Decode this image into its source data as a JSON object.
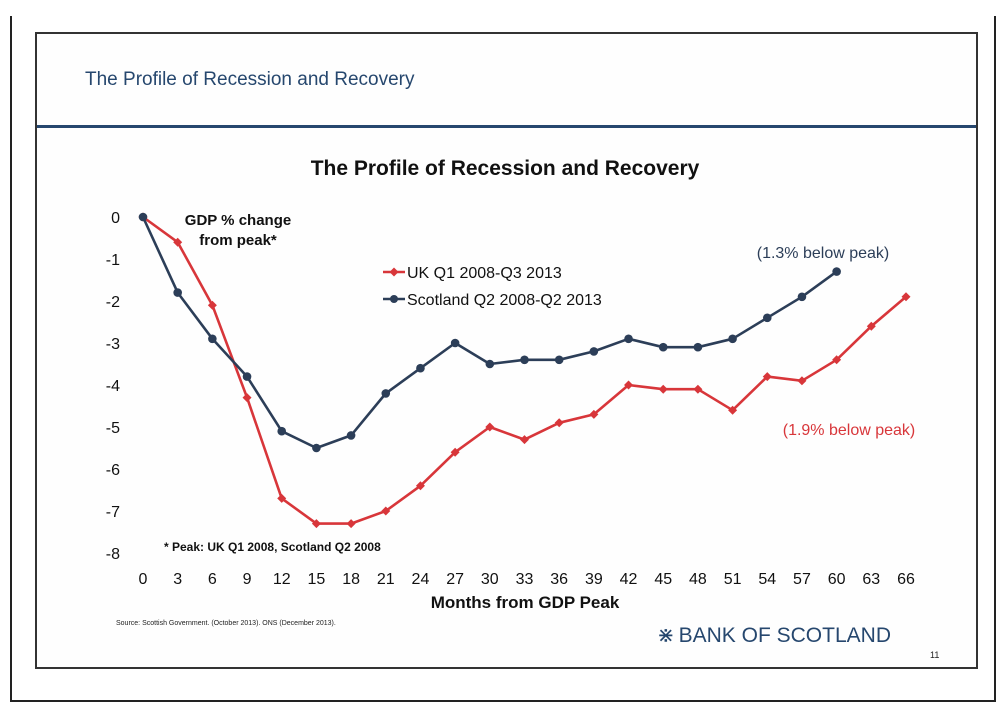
{
  "slide": {
    "header": "The Profile of Recession and Recovery",
    "source": "Source: Scottish Government. (October 2013). ONS (December 2013).",
    "brand": "BANK OF SCOTLAND",
    "brand_icon": "saltire-icon",
    "page_number": "11",
    "colors": {
      "header": "#26476e",
      "uk": "#d8363a",
      "scotland": "#2c3e58"
    }
  },
  "chart_data": {
    "type": "line",
    "title": "The Profile of Recession and Recovery",
    "ylabel": "GDP % change from peak*",
    "ylabel_lines": [
      "GDP % change",
      "from peak*"
    ],
    "xlabel": "Months from GDP Peak",
    "xlim": [
      0,
      66
    ],
    "ylim": [
      -8,
      0
    ],
    "x_ticks": [
      0,
      3,
      6,
      9,
      12,
      15,
      18,
      21,
      24,
      27,
      30,
      33,
      36,
      39,
      42,
      45,
      48,
      51,
      54,
      57,
      60,
      63,
      66
    ],
    "y_ticks": [
      0,
      -1,
      -2,
      -3,
      -4,
      -5,
      -6,
      -7,
      -8
    ],
    "grid": false,
    "legend_position": "upper-center",
    "series": [
      {
        "name": "UK Q1 2008-Q3 2013",
        "color": "#d8363a",
        "marker": "diamond",
        "x": [
          0,
          3,
          6,
          9,
          12,
          15,
          18,
          21,
          24,
          27,
          30,
          33,
          36,
          39,
          42,
          45,
          48,
          51,
          54,
          57,
          60,
          63,
          66
        ],
        "values": [
          0,
          -0.6,
          -2.1,
          -4.3,
          -6.7,
          -7.3,
          -7.3,
          -7.0,
          -6.4,
          -5.6,
          -5.0,
          -5.3,
          -4.9,
          -4.7,
          -4.0,
          -4.1,
          -4.1,
          -4.6,
          -3.8,
          -3.9,
          -3.4,
          -2.6,
          -1.9
        ]
      },
      {
        "name": "Scotland Q2 2008-Q2 2013",
        "color": "#2c3e58",
        "marker": "circle",
        "x": [
          0,
          3,
          6,
          9,
          12,
          15,
          18,
          21,
          24,
          27,
          30,
          33,
          36,
          39,
          42,
          45,
          48,
          51,
          54,
          57,
          60
        ],
        "values": [
          0,
          -1.8,
          -2.9,
          -3.8,
          -5.1,
          -5.5,
          -5.2,
          -4.2,
          -3.6,
          -3.0,
          -3.5,
          -3.4,
          -3.4,
          -3.2,
          -2.9,
          -3.1,
          -3.1,
          -2.9,
          -2.4,
          -1.9,
          -1.3
        ]
      }
    ],
    "annotations": [
      {
        "text": "(1.3% below peak)",
        "series": "Scotland Q2 2008-Q2 2013"
      },
      {
        "text": "(1.9% below peak)",
        "series": "UK Q1 2008-Q3 2013"
      },
      {
        "text": "* Peak: UK Q1 2008, Scotland Q2 2008"
      }
    ]
  }
}
